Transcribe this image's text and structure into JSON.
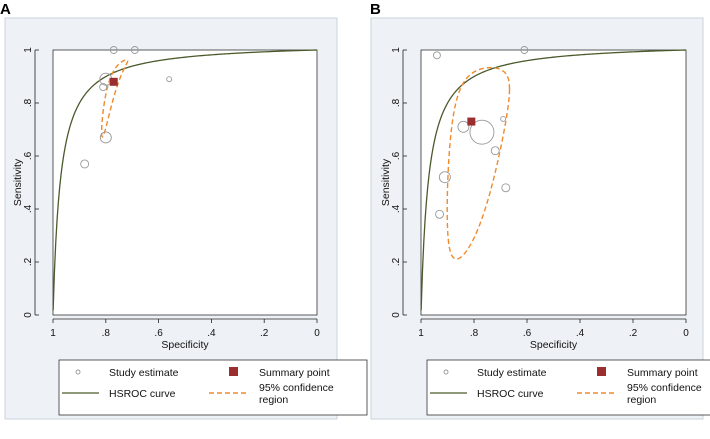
{
  "legend": {
    "study": "Study estimate",
    "summary": "Summary point",
    "curve": "HSROC curve",
    "ci_line1": "95% confidence",
    "ci_line2": "region"
  },
  "colors": {
    "curve": "#4b5a2c",
    "ci": "#f08a2a",
    "summary": "#9b2f2f",
    "study": "#999999",
    "panel_bg": "#eef2f6",
    "frame": "#333333"
  },
  "chart_data": [
    {
      "panel": "A",
      "type": "scatter",
      "xlabel": "Specificity",
      "ylabel": "Sensitivity",
      "xlim": [
        1,
        0
      ],
      "ylim": [
        0,
        1
      ],
      "xticks": [
        "1",
        ".8",
        ".6",
        ".4",
        ".2",
        "0"
      ],
      "yticks": [
        "0",
        ".2",
        ".4",
        ".6",
        ".8",
        "1"
      ],
      "studies": [
        {
          "spec": 0.77,
          "sens": 1.0,
          "r": 3.5
        },
        {
          "spec": 0.69,
          "sens": 1.0,
          "r": 3.5
        },
        {
          "spec": 0.8,
          "sens": 0.89,
          "r": 6
        },
        {
          "spec": 0.81,
          "sens": 0.86,
          "r": 3.5
        },
        {
          "spec": 0.56,
          "sens": 0.89,
          "r": 2.5
        },
        {
          "spec": 0.8,
          "sens": 0.67,
          "r": 5.5
        },
        {
          "spec": 0.88,
          "sens": 0.57,
          "r": 4
        }
      ],
      "summary": {
        "spec": 0.77,
        "sens": 0.88
      },
      "curve": {
        "a": 3.58,
        "b": 0
      },
      "ci_region": {
        "spec": 0.77,
        "sens": 0.88,
        "rx": 0.07,
        "ry": 0.58,
        "rho": 0.93
      }
    },
    {
      "panel": "B",
      "type": "scatter",
      "xlabel": "Specificity",
      "ylabel": "Sensitivity",
      "xlim": [
        1,
        0
      ],
      "ylim": [
        0,
        1
      ],
      "xticks": [
        "1",
        ".8",
        ".6",
        ".4",
        ".2",
        "0"
      ],
      "yticks": [
        "0",
        ".2",
        ".4",
        ".6",
        ".8",
        "1"
      ],
      "studies": [
        {
          "spec": 0.94,
          "sens": 0.98,
          "r": 3.5
        },
        {
          "spec": 0.61,
          "sens": 1.0,
          "r": 3.5
        },
        {
          "spec": 0.84,
          "sens": 0.71,
          "r": 5.5
        },
        {
          "spec": 0.77,
          "sens": 0.69,
          "r": 12
        },
        {
          "spec": 0.69,
          "sens": 0.74,
          "r": 2.5
        },
        {
          "spec": 0.72,
          "sens": 0.62,
          "r": 4
        },
        {
          "spec": 0.91,
          "sens": 0.52,
          "r": 5.5
        },
        {
          "spec": 0.68,
          "sens": 0.48,
          "r": 4
        },
        {
          "spec": 0.93,
          "sens": 0.38,
          "r": 4
        }
      ],
      "summary": {
        "spec": 0.81,
        "sens": 0.73
      },
      "curve": {
        "a": 3.58,
        "b": 0
      },
      "ci_region": {
        "spec": 0.81,
        "sens": 0.66,
        "rx": 0.19,
        "ry": 0.9,
        "rho": 0.55
      }
    }
  ]
}
